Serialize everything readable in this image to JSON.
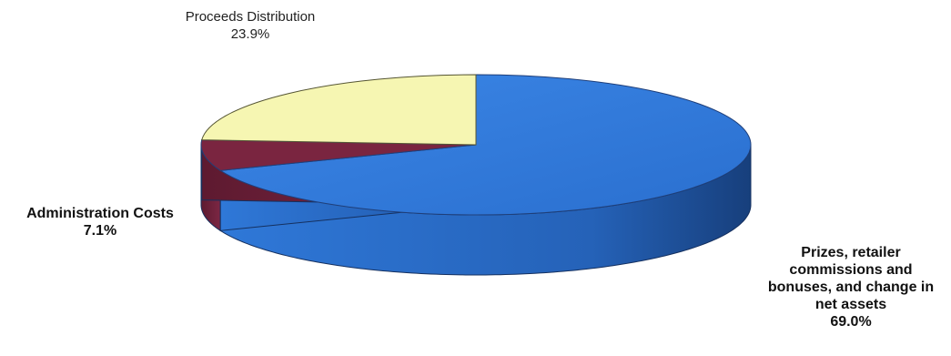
{
  "chart_data": {
    "type": "pie",
    "slices": [
      {
        "label_lines": [
          "Prizes, retailer",
          "commissions and",
          "bonuses, and change in",
          "net assets"
        ],
        "percent_label": "69.0%",
        "value": 69.0,
        "color": "#2f77d6"
      },
      {
        "label_lines": [
          "Administration Costs"
        ],
        "percent_label": "7.1%",
        "value": 7.1,
        "color": "#7a2540"
      },
      {
        "label_lines": [
          "Proceeds Distribution"
        ],
        "percent_label": "23.9%",
        "value": 23.9,
        "color": "#f6f6b2"
      }
    ],
    "three_d": true,
    "edge_color": "#1f3f7a"
  }
}
